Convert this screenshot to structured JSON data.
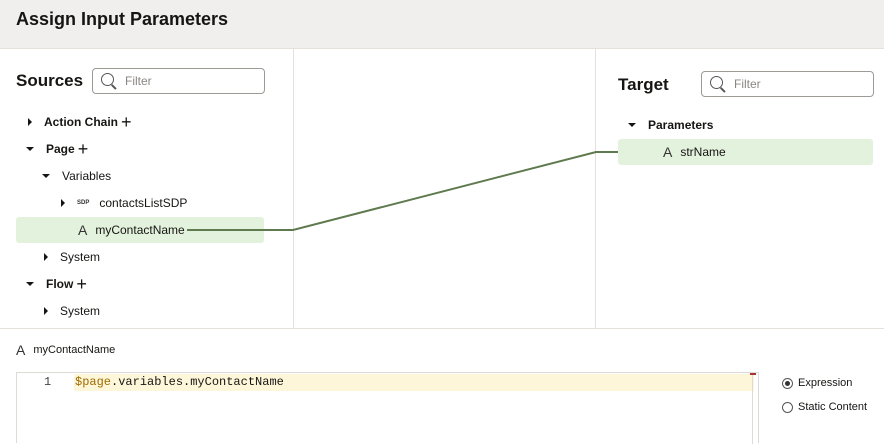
{
  "header": {
    "title": "Assign Input Parameters"
  },
  "sources": {
    "title": "Sources",
    "filter_placeholder": "Filter",
    "items": [
      {
        "label": "Action Chain",
        "expanded": false,
        "addable": true
      },
      {
        "label": "Page",
        "expanded": true,
        "addable": true
      },
      {
        "label": "Variables",
        "expanded": true
      },
      {
        "label": "contactsListSDP",
        "badge": "SDP",
        "expanded": false
      },
      {
        "label": "myContactName",
        "icon": "string-type-icon",
        "selected": true
      },
      {
        "label": "System",
        "expanded": false
      },
      {
        "label": "Flow",
        "expanded": true,
        "addable": true
      },
      {
        "label": "System",
        "expanded": false
      }
    ]
  },
  "target": {
    "title": "Target",
    "filter_placeholder": "Filter",
    "items": [
      {
        "label": "Parameters",
        "expanded": true
      },
      {
        "label": "strName",
        "icon": "string-type-icon",
        "selected": true
      }
    ]
  },
  "mapping": {
    "from": "myContactName",
    "to": "strName",
    "line_color": "#5f7a4f"
  },
  "editor": {
    "variable": "myContactName",
    "line_number": "1",
    "code_prefix": "$page",
    "code_rest": ".variables.myContactName"
  },
  "mode": {
    "options": [
      {
        "label": "Expression",
        "selected": true
      },
      {
        "label": "Static Content",
        "selected": false
      }
    ]
  },
  "colors": {
    "highlight": "#e3f2dc",
    "header_bg": "#f1efed",
    "code_line": "#fdf6d8"
  }
}
